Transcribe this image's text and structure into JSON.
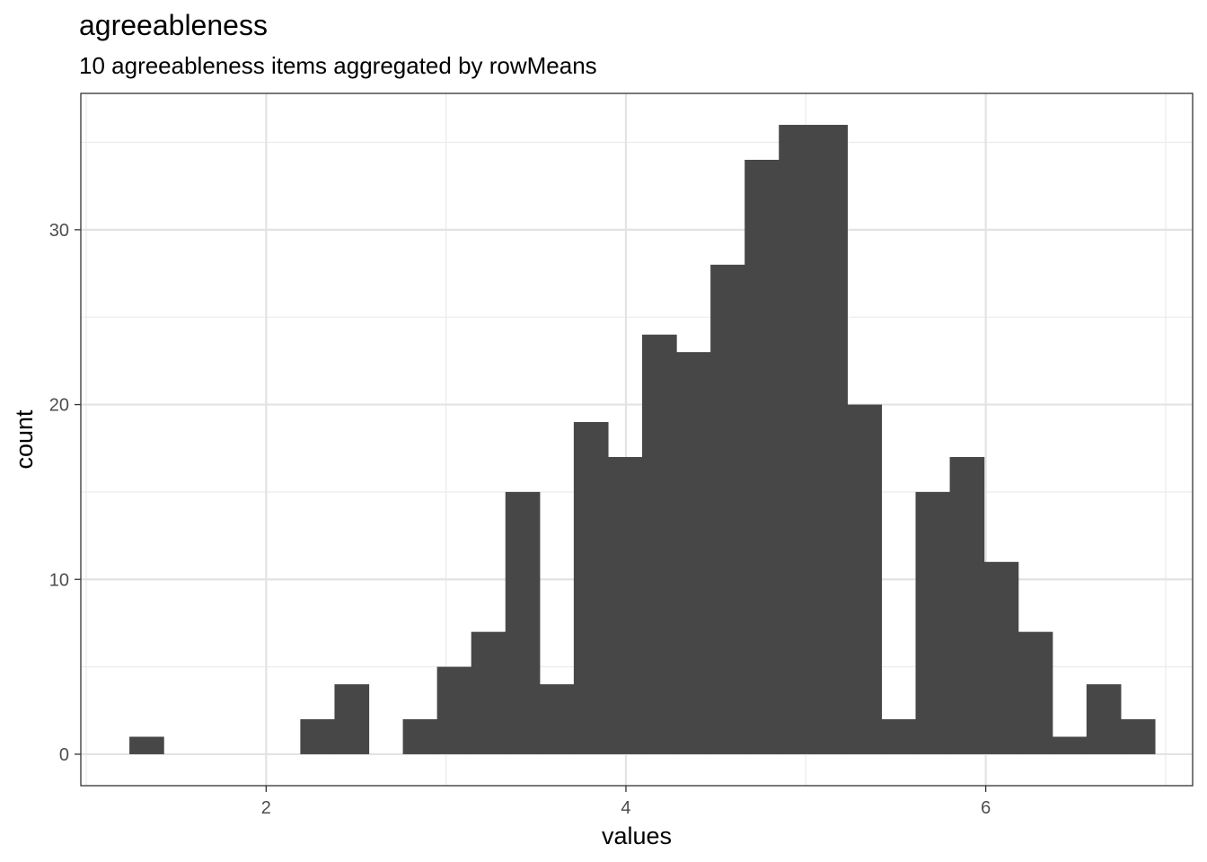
{
  "chart_data": {
    "type": "bar",
    "title": "agreeableness",
    "subtitle": "10 agreeableness items aggregated by rowMeans",
    "xlabel": "values",
    "ylabel": "count",
    "xlim": [
      0.97,
      7.15
    ],
    "ylim": [
      -1.8,
      37.8
    ],
    "x_ticks": [
      2,
      4,
      6
    ],
    "x_tick_labels": [
      "2",
      "4",
      "6"
    ],
    "y_ticks": [
      0,
      10,
      20,
      30
    ],
    "y_tick_labels": [
      "0",
      "10",
      "20",
      "30"
    ],
    "bin_width": 0.19,
    "bins": [
      {
        "x0": 1.24,
        "count": 1
      },
      {
        "x0": 1.43,
        "count": 0
      },
      {
        "x0": 1.62,
        "count": 0
      },
      {
        "x0": 1.81,
        "count": 0
      },
      {
        "x0": 2.0,
        "count": 0
      },
      {
        "x0": 2.19,
        "count": 2
      },
      {
        "x0": 2.38,
        "count": 4
      },
      {
        "x0": 2.57,
        "count": 0
      },
      {
        "x0": 2.76,
        "count": 2
      },
      {
        "x0": 2.95,
        "count": 5
      },
      {
        "x0": 3.14,
        "count": 7
      },
      {
        "x0": 3.33,
        "count": 15
      },
      {
        "x0": 3.52,
        "count": 4
      },
      {
        "x0": 3.71,
        "count": 19
      },
      {
        "x0": 3.9,
        "count": 17
      },
      {
        "x0": 4.09,
        "count": 24
      },
      {
        "x0": 4.28,
        "count": 23
      },
      {
        "x0": 4.47,
        "count": 28
      },
      {
        "x0": 4.66,
        "count": 34
      },
      {
        "x0": 4.85,
        "count": 36
      },
      {
        "x0": 5.04,
        "count": 36
      },
      {
        "x0": 5.23,
        "count": 20
      },
      {
        "x0": 5.42,
        "count": 2
      },
      {
        "x0": 5.61,
        "count": 15
      },
      {
        "x0": 5.8,
        "count": 17
      },
      {
        "x0": 5.99,
        "count": 11
      },
      {
        "x0": 6.18,
        "count": 7
      },
      {
        "x0": 6.37,
        "count": 1
      },
      {
        "x0": 6.56,
        "count": 4
      },
      {
        "x0": 6.75,
        "count": 2
      }
    ],
    "bar_color": "#474747",
    "grid": true,
    "legend": "none"
  }
}
